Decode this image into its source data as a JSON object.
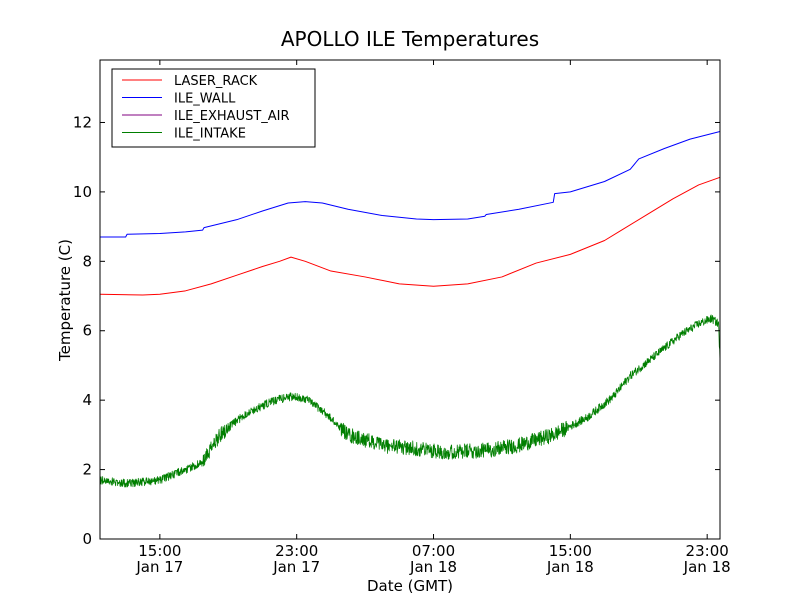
{
  "chart_data": {
    "type": "line",
    "title": "APOLLO ILE Temperatures",
    "xlabel": "Date (GMT)",
    "ylabel": "Temperature (C)",
    "xlim": [
      "2017-01-17T11:30",
      "2017-01-18T23:45"
    ],
    "ylim": [
      0,
      13.8
    ],
    "grid": false,
    "legend_position": "top-left",
    "x_ticks": [
      {
        "value": "2017-01-17T15:00",
        "time": "15:00",
        "date": "Jan 17"
      },
      {
        "value": "2017-01-17T23:00",
        "time": "23:00",
        "date": "Jan 17"
      },
      {
        "value": "2017-01-18T07:00",
        "time": "07:00",
        "date": "Jan 18"
      },
      {
        "value": "2017-01-18T15:00",
        "time": "15:00",
        "date": "Jan 18"
      },
      {
        "value": "2017-01-18T23:00",
        "time": "23:00",
        "date": "Jan 18"
      }
    ],
    "y_ticks": [
      0,
      2,
      4,
      6,
      8,
      10,
      12
    ],
    "series": [
      {
        "name": "LASER_RACK",
        "color": "#ff0000",
        "x": [
          "2017-01-17T11:30",
          "2017-01-17T14:00",
          "2017-01-17T15:00",
          "2017-01-17T16:30",
          "2017-01-17T18:00",
          "2017-01-17T19:30",
          "2017-01-17T21:00",
          "2017-01-17T22:00",
          "2017-01-17T22:40",
          "2017-01-17T23:30",
          "2017-01-18T01:00",
          "2017-01-18T03:00",
          "2017-01-18T05:00",
          "2017-01-18T07:00",
          "2017-01-18T09:00",
          "2017-01-18T11:00",
          "2017-01-18T13:00",
          "2017-01-18T15:00",
          "2017-01-18T17:00",
          "2017-01-18T18:00",
          "2017-01-18T19:30",
          "2017-01-18T21:00",
          "2017-01-18T22:30",
          "2017-01-18T23:45"
        ],
        "y": [
          7.05,
          7.03,
          7.05,
          7.15,
          7.35,
          7.6,
          7.85,
          8.0,
          8.12,
          8.0,
          7.72,
          7.55,
          7.35,
          7.28,
          7.35,
          7.55,
          7.95,
          8.2,
          8.6,
          8.9,
          9.35,
          9.8,
          10.2,
          10.42
        ]
      },
      {
        "name": "ILE_WALL",
        "color": "#0000ff",
        "x": [
          "2017-01-17T11:30",
          "2017-01-17T13:00",
          "2017-01-17T13:05",
          "2017-01-17T15:00",
          "2017-01-17T16:30",
          "2017-01-17T17:30",
          "2017-01-17T17:35",
          "2017-01-17T19:30",
          "2017-01-17T21:00",
          "2017-01-17T22:30",
          "2017-01-17T23:30",
          "2017-01-18T00:30",
          "2017-01-18T02:00",
          "2017-01-18T04:00",
          "2017-01-18T06:00",
          "2017-01-18T07:00",
          "2017-01-18T09:00",
          "2017-01-18T10:00",
          "2017-01-18T10:05",
          "2017-01-18T12:00",
          "2017-01-18T14:00",
          "2017-01-18T14:05",
          "2017-01-18T15:00",
          "2017-01-18T17:00",
          "2017-01-18T18:30",
          "2017-01-18T19:00",
          "2017-01-18T20:30",
          "2017-01-18T22:00",
          "2017-01-18T23:45"
        ],
        "y": [
          8.7,
          8.7,
          8.78,
          8.8,
          8.85,
          8.9,
          8.97,
          9.2,
          9.45,
          9.68,
          9.72,
          9.68,
          9.5,
          9.32,
          9.22,
          9.2,
          9.22,
          9.3,
          9.35,
          9.5,
          9.7,
          9.95,
          10.0,
          10.3,
          10.65,
          10.95,
          11.25,
          11.52,
          11.74
        ]
      },
      {
        "name": "ILE_EXHAUST_AIR",
        "color": "#800080",
        "x": [],
        "y": []
      },
      {
        "name": "ILE_INTAKE",
        "color": "#007f00",
        "noise": true,
        "x": [
          "2017-01-17T11:30",
          "2017-01-17T13:00",
          "2017-01-17T15:00",
          "2017-01-17T17:30",
          "2017-01-17T18:30",
          "2017-01-17T20:00",
          "2017-01-17T21:30",
          "2017-01-17T22:30",
          "2017-01-17T23:30",
          "2017-01-18T00:30",
          "2017-01-18T02:00",
          "2017-01-18T04:00",
          "2017-01-18T06:00",
          "2017-01-18T08:00",
          "2017-01-18T10:00",
          "2017-01-18T12:00",
          "2017-01-18T14:00",
          "2017-01-18T16:00",
          "2017-01-18T17:30",
          "2017-01-18T18:30",
          "2017-01-18T20:00",
          "2017-01-18T21:30",
          "2017-01-18T22:30",
          "2017-01-18T23:15",
          "2017-01-18T23:40",
          "2017-01-18T23:45"
        ],
        "y": [
          1.7,
          1.6,
          1.7,
          2.2,
          3.0,
          3.6,
          3.95,
          4.1,
          4.05,
          3.7,
          3.0,
          2.7,
          2.6,
          2.5,
          2.55,
          2.7,
          3.0,
          3.5,
          4.1,
          4.7,
          5.3,
          5.9,
          6.2,
          6.35,
          6.2,
          5.1
        ]
      }
    ]
  }
}
